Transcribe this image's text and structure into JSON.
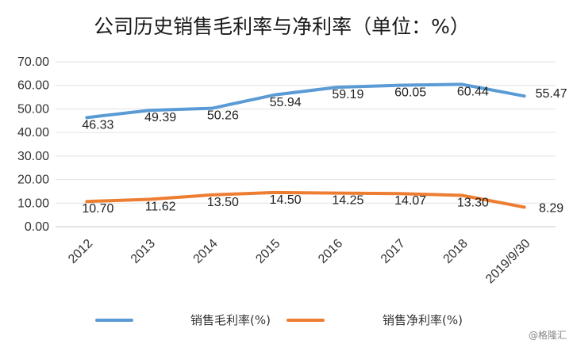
{
  "chart_data": {
    "type": "line",
    "title": "公司历史销售毛利率与净利率（单位：%）",
    "categories": [
      "2012",
      "2013",
      "2014",
      "2015",
      "2016",
      "2017",
      "2018",
      "2019/9/30"
    ],
    "series": [
      {
        "name": "销售毛利率(%)",
        "color": "#5b9bd5",
        "values": [
          46.33,
          49.39,
          50.26,
          55.94,
          59.19,
          60.05,
          60.44,
          55.47
        ],
        "labels": [
          "46.33",
          "49.39",
          "50.26",
          "55.94",
          "59.19",
          "60.05",
          "60.44",
          "55.47"
        ]
      },
      {
        "name": "销售净利率(%)",
        "color": "#ed7d31",
        "values": [
          10.7,
          11.62,
          13.5,
          14.5,
          14.25,
          14.07,
          13.3,
          8.29
        ],
        "labels": [
          "10.70",
          "11.62",
          "13.50",
          "14.50",
          "14.25",
          "14.07",
          "13.30",
          "8.29"
        ]
      }
    ],
    "yticks": [
      "0.00",
      "10.00",
      "20.00",
      "30.00",
      "40.00",
      "50.00",
      "60.00",
      "70.00"
    ],
    "ylim": [
      0,
      70
    ],
    "grid": true,
    "legend": "bottom"
  },
  "watermark": "@格隆汇"
}
